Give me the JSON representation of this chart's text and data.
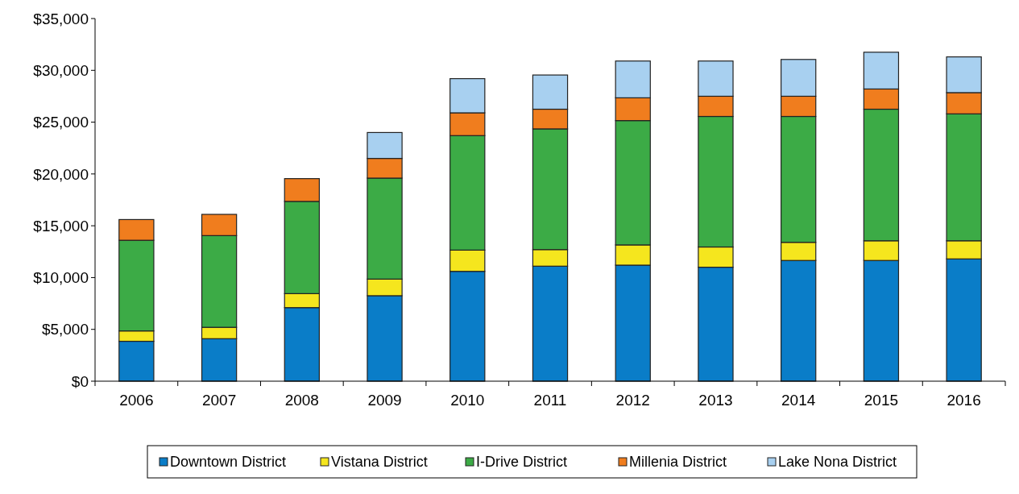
{
  "chart_data": {
    "type": "bar",
    "stacked": true,
    "categories": [
      "2006",
      "2007",
      "2008",
      "2009",
      "2010",
      "2011",
      "2012",
      "2013",
      "2014",
      "2015",
      "2016"
    ],
    "series": [
      {
        "name": "Downtown District",
        "color": "#0a7dc8",
        "values": [
          3850,
          4100,
          7100,
          8250,
          10600,
          11100,
          11200,
          11000,
          11650,
          11650,
          11800
        ]
      },
      {
        "name": "Vistana District",
        "color": "#f5e61e",
        "values": [
          1000,
          1100,
          1350,
          1600,
          2050,
          1600,
          1950,
          1950,
          1750,
          1900,
          1750
        ]
      },
      {
        "name": "I-Drive District",
        "color": "#3cab46",
        "values": [
          8750,
          8850,
          8900,
          9750,
          11050,
          11650,
          12000,
          12600,
          12150,
          12700,
          12250
        ]
      },
      {
        "name": "Millenia District",
        "color": "#f07d1e",
        "values": [
          2000,
          2050,
          2200,
          1900,
          2200,
          1900,
          2200,
          1950,
          1950,
          1950,
          2050
        ]
      },
      {
        "name": "Lake Nona District",
        "color": "#a8d0f0",
        "values": [
          null,
          null,
          null,
          2500,
          3300,
          3300,
          3550,
          3400,
          3550,
          3550,
          3450
        ]
      }
    ],
    "ylim": [
      0,
      35000
    ],
    "yticks": [
      {
        "value": 0,
        "label": "$0"
      },
      {
        "value": 5000,
        "label": "$5,000"
      },
      {
        "value": 10000,
        "label": "$10,000"
      },
      {
        "value": 15000,
        "label": "$15,000"
      },
      {
        "value": 20000,
        "label": "$20,000"
      },
      {
        "value": 25000,
        "label": "$25,000"
      },
      {
        "value": 30000,
        "label": "$30,000"
      },
      {
        "value": 35000,
        "label": "$35,000"
      }
    ],
    "grid": false,
    "legend": "bottom"
  }
}
